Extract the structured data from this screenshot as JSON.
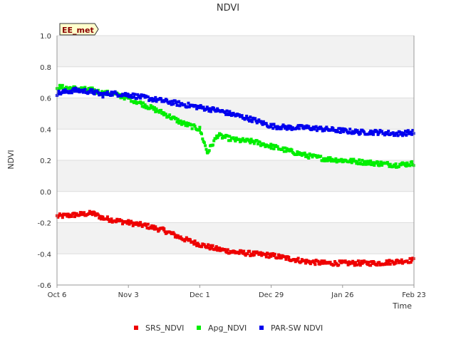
{
  "chart_data": {
    "type": "scatter",
    "title": "NDVI",
    "xlabel": "Time",
    "ylabel": "NDVI",
    "badge": "EE_met",
    "x_tick_labels": [
      "Oct 6",
      "Nov 3",
      "Dec 1",
      "Dec 29",
      "Jan 26",
      "Feb 23"
    ],
    "y_tick_labels": [
      "1.0",
      "0.8",
      "0.6",
      "0.4",
      "0.2",
      "0.0",
      "-0.2",
      "-0.4",
      "-0.6"
    ],
    "y_ticks": [
      1.0,
      0.8,
      0.6,
      0.4,
      0.2,
      0.0,
      -0.2,
      -0.4,
      -0.6
    ],
    "ylim": [
      -0.6,
      1.0
    ],
    "xlim": [
      "Oct 6",
      "Feb 23"
    ],
    "grid": "horizontal bands",
    "legend_position": "bottom",
    "colors": {
      "background": "#ffffff",
      "band": "#f2f2f2",
      "gridline": "#dddddd",
      "badge_fill": "#ffffcc",
      "badge_text": "#8b0000",
      "axis_text": "#333333"
    },
    "series": [
      {
        "name": "SRS_NDVI",
        "color": "#ee0000",
        "x": [
          "Oct 6",
          "Oct 13",
          "Oct 20",
          "Oct 24",
          "Oct 27",
          "Nov 3",
          "Nov 10",
          "Nov 17",
          "Nov 24",
          "Dec 1",
          "Dec 8",
          "Dec 15",
          "Dec 22",
          "Dec 29",
          "Jan 5",
          "Jan 12",
          "Jan 19",
          "Jan 26",
          "Feb 2",
          "Feb 9",
          "Feb 16",
          "Feb 23"
        ],
        "values": [
          -0.16,
          -0.15,
          -0.14,
          -0.17,
          -0.18,
          -0.2,
          -0.22,
          -0.25,
          -0.3,
          -0.34,
          -0.37,
          -0.39,
          -0.4,
          -0.41,
          -0.43,
          -0.45,
          -0.46,
          -0.46,
          -0.46,
          -0.46,
          -0.45,
          -0.44
        ]
      },
      {
        "name": "Apg_NDVI",
        "color": "#00ee00",
        "x": [
          "Oct 6",
          "Oct 13",
          "Oct 20",
          "Oct 24",
          "Oct 27",
          "Nov 3",
          "Nov 10",
          "Nov 17",
          "Nov 24",
          "Dec 1",
          "Dec 4",
          "Dec 8",
          "Dec 15",
          "Dec 22",
          "Dec 29",
          "Jan 5",
          "Jan 12",
          "Jan 19",
          "Jan 26",
          "Feb 2",
          "Feb 9",
          "Feb 16",
          "Feb 23"
        ],
        "values": [
          0.67,
          0.66,
          0.65,
          0.63,
          0.63,
          0.6,
          0.55,
          0.5,
          0.44,
          0.4,
          0.25,
          0.36,
          0.33,
          0.32,
          0.29,
          0.26,
          0.23,
          0.21,
          0.2,
          0.19,
          0.18,
          0.17,
          0.18
        ]
      },
      {
        "name": "PAR-SW NDVI",
        "color": "#0000ee",
        "x": [
          "Oct 6",
          "Oct 13",
          "Oct 20",
          "Oct 24",
          "Oct 27",
          "Nov 3",
          "Nov 10",
          "Nov 17",
          "Nov 24",
          "Dec 1",
          "Dec 8",
          "Dec 15",
          "Dec 22",
          "Dec 29",
          "Jan 5",
          "Jan 12",
          "Jan 19",
          "Jan 26",
          "Feb 2",
          "Feb 9",
          "Feb 16",
          "Feb 23"
        ],
        "values": [
          0.63,
          0.65,
          0.64,
          0.62,
          0.63,
          0.62,
          0.6,
          0.58,
          0.56,
          0.54,
          0.52,
          0.49,
          0.46,
          0.42,
          0.41,
          0.41,
          0.4,
          0.39,
          0.38,
          0.38,
          0.37,
          0.38
        ]
      }
    ]
  }
}
